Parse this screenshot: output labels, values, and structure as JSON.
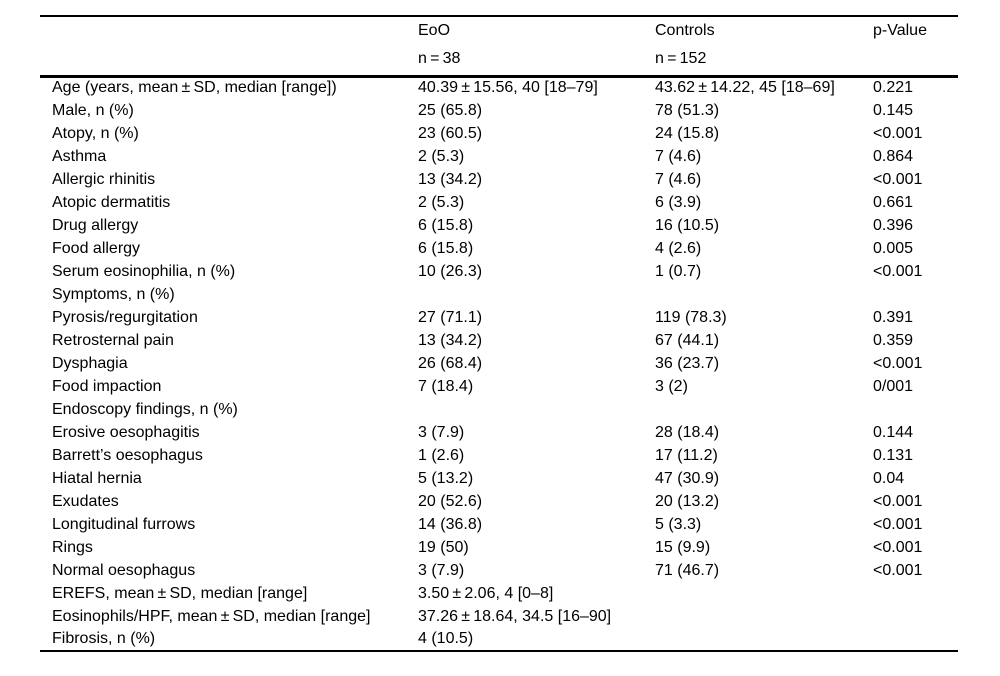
{
  "table": {
    "header": {
      "label": "",
      "eoo": {
        "title": "EoO",
        "sub": "n = 38"
      },
      "controls": {
        "title": "Controls",
        "sub": "n = 152"
      },
      "pvalue": {
        "title": "p-Value",
        "sub": ""
      }
    },
    "rows": [
      {
        "label": "Age (years, mean ± SD, median [range])",
        "eoo": "40.39 ± 15.56, 40 [18–79]",
        "controls": "43.62 ± 14.22, 45 [18–69]",
        "p": "0.221"
      },
      {
        "label": "Male, n (%)",
        "eoo": "25 (65.8)",
        "controls": "78 (51.3)",
        "p": "0.145"
      },
      {
        "label": "Atopy, n (%)",
        "eoo": "23 (60.5)",
        "controls": "24 (15.8)",
        "p": "<0.001"
      },
      {
        "label": "Asthma",
        "eoo": "2 (5.3)",
        "controls": "7 (4.6)",
        "p": "0.864"
      },
      {
        "label": "Allergic rhinitis",
        "eoo": "13 (34.2)",
        "controls": "7 (4.6)",
        "p": "<0.001"
      },
      {
        "label": "Atopic dermatitis",
        "eoo": "2 (5.3)",
        "controls": "6 (3.9)",
        "p": "0.661"
      },
      {
        "label": "Drug allergy",
        "eoo": "6 (15.8)",
        "controls": "16 (10.5)",
        "p": "0.396"
      },
      {
        "label": "Food allergy",
        "eoo": "6 (15.8)",
        "controls": "4 (2.6)",
        "p": "0.005"
      },
      {
        "label": "Serum eosinophilia, n (%)",
        "eoo": "10 (26.3)",
        "controls": "1 (0.7)",
        "p": "<0.001"
      },
      {
        "label": "Symptoms, n (%)",
        "eoo": "",
        "controls": "",
        "p": ""
      },
      {
        "label": "Pyrosis/regurgitation",
        "eoo": "27 (71.1)",
        "controls": "119 (78.3)",
        "p": "0.391"
      },
      {
        "label": "Retrosternal pain",
        "eoo": "13 (34.2)",
        "controls": "67 (44.1)",
        "p": "0.359"
      },
      {
        "label": "Dysphagia",
        "eoo": "26 (68.4)",
        "controls": "36 (23.7)",
        "p": "<0.001"
      },
      {
        "label": "Food impaction",
        "eoo": "7 (18.4)",
        "controls": "3 (2)",
        "p": "0/001"
      },
      {
        "label": "Endoscopy findings, n (%)",
        "eoo": "",
        "controls": "",
        "p": ""
      },
      {
        "label": "Erosive oesophagitis",
        "eoo": "3 (7.9)",
        "controls": "28 (18.4)",
        "p": "0.144"
      },
      {
        "label": "Barrett’s oesophagus",
        "eoo": "1 (2.6)",
        "controls": "17 (11.2)",
        "p": "0.131"
      },
      {
        "label": "Hiatal hernia",
        "eoo": "5 (13.2)",
        "controls": "47 (30.9)",
        "p": "0.04"
      },
      {
        "label": "Exudates",
        "eoo": "20 (52.6)",
        "controls": "20 (13.2)",
        "p": "<0.001"
      },
      {
        "label": "Longitudinal furrows",
        "eoo": "14 (36.8)",
        "controls": "5 (3.3)",
        "p": "<0.001"
      },
      {
        "label": "Rings",
        "eoo": "19 (50)",
        "controls": "15 (9.9)",
        "p": "<0.001"
      },
      {
        "label": "Normal oesophagus",
        "eoo": "3 (7.9)",
        "controls": "71 (46.7)",
        "p": "<0.001"
      },
      {
        "label": "EREFS, mean ± SD, median [range]",
        "eoo": "3.50 ± 2.06, 4 [0–8]",
        "controls": "",
        "p": ""
      },
      {
        "label": "Eosinophils/HPF, mean ± SD, median [range]",
        "eoo": "37.26 ± 18.64, 34.5 [16–90]",
        "controls": "",
        "p": ""
      },
      {
        "label": "Fibrosis, n (%)",
        "eoo": "4 (10.5)",
        "controls": "",
        "p": ""
      }
    ]
  }
}
